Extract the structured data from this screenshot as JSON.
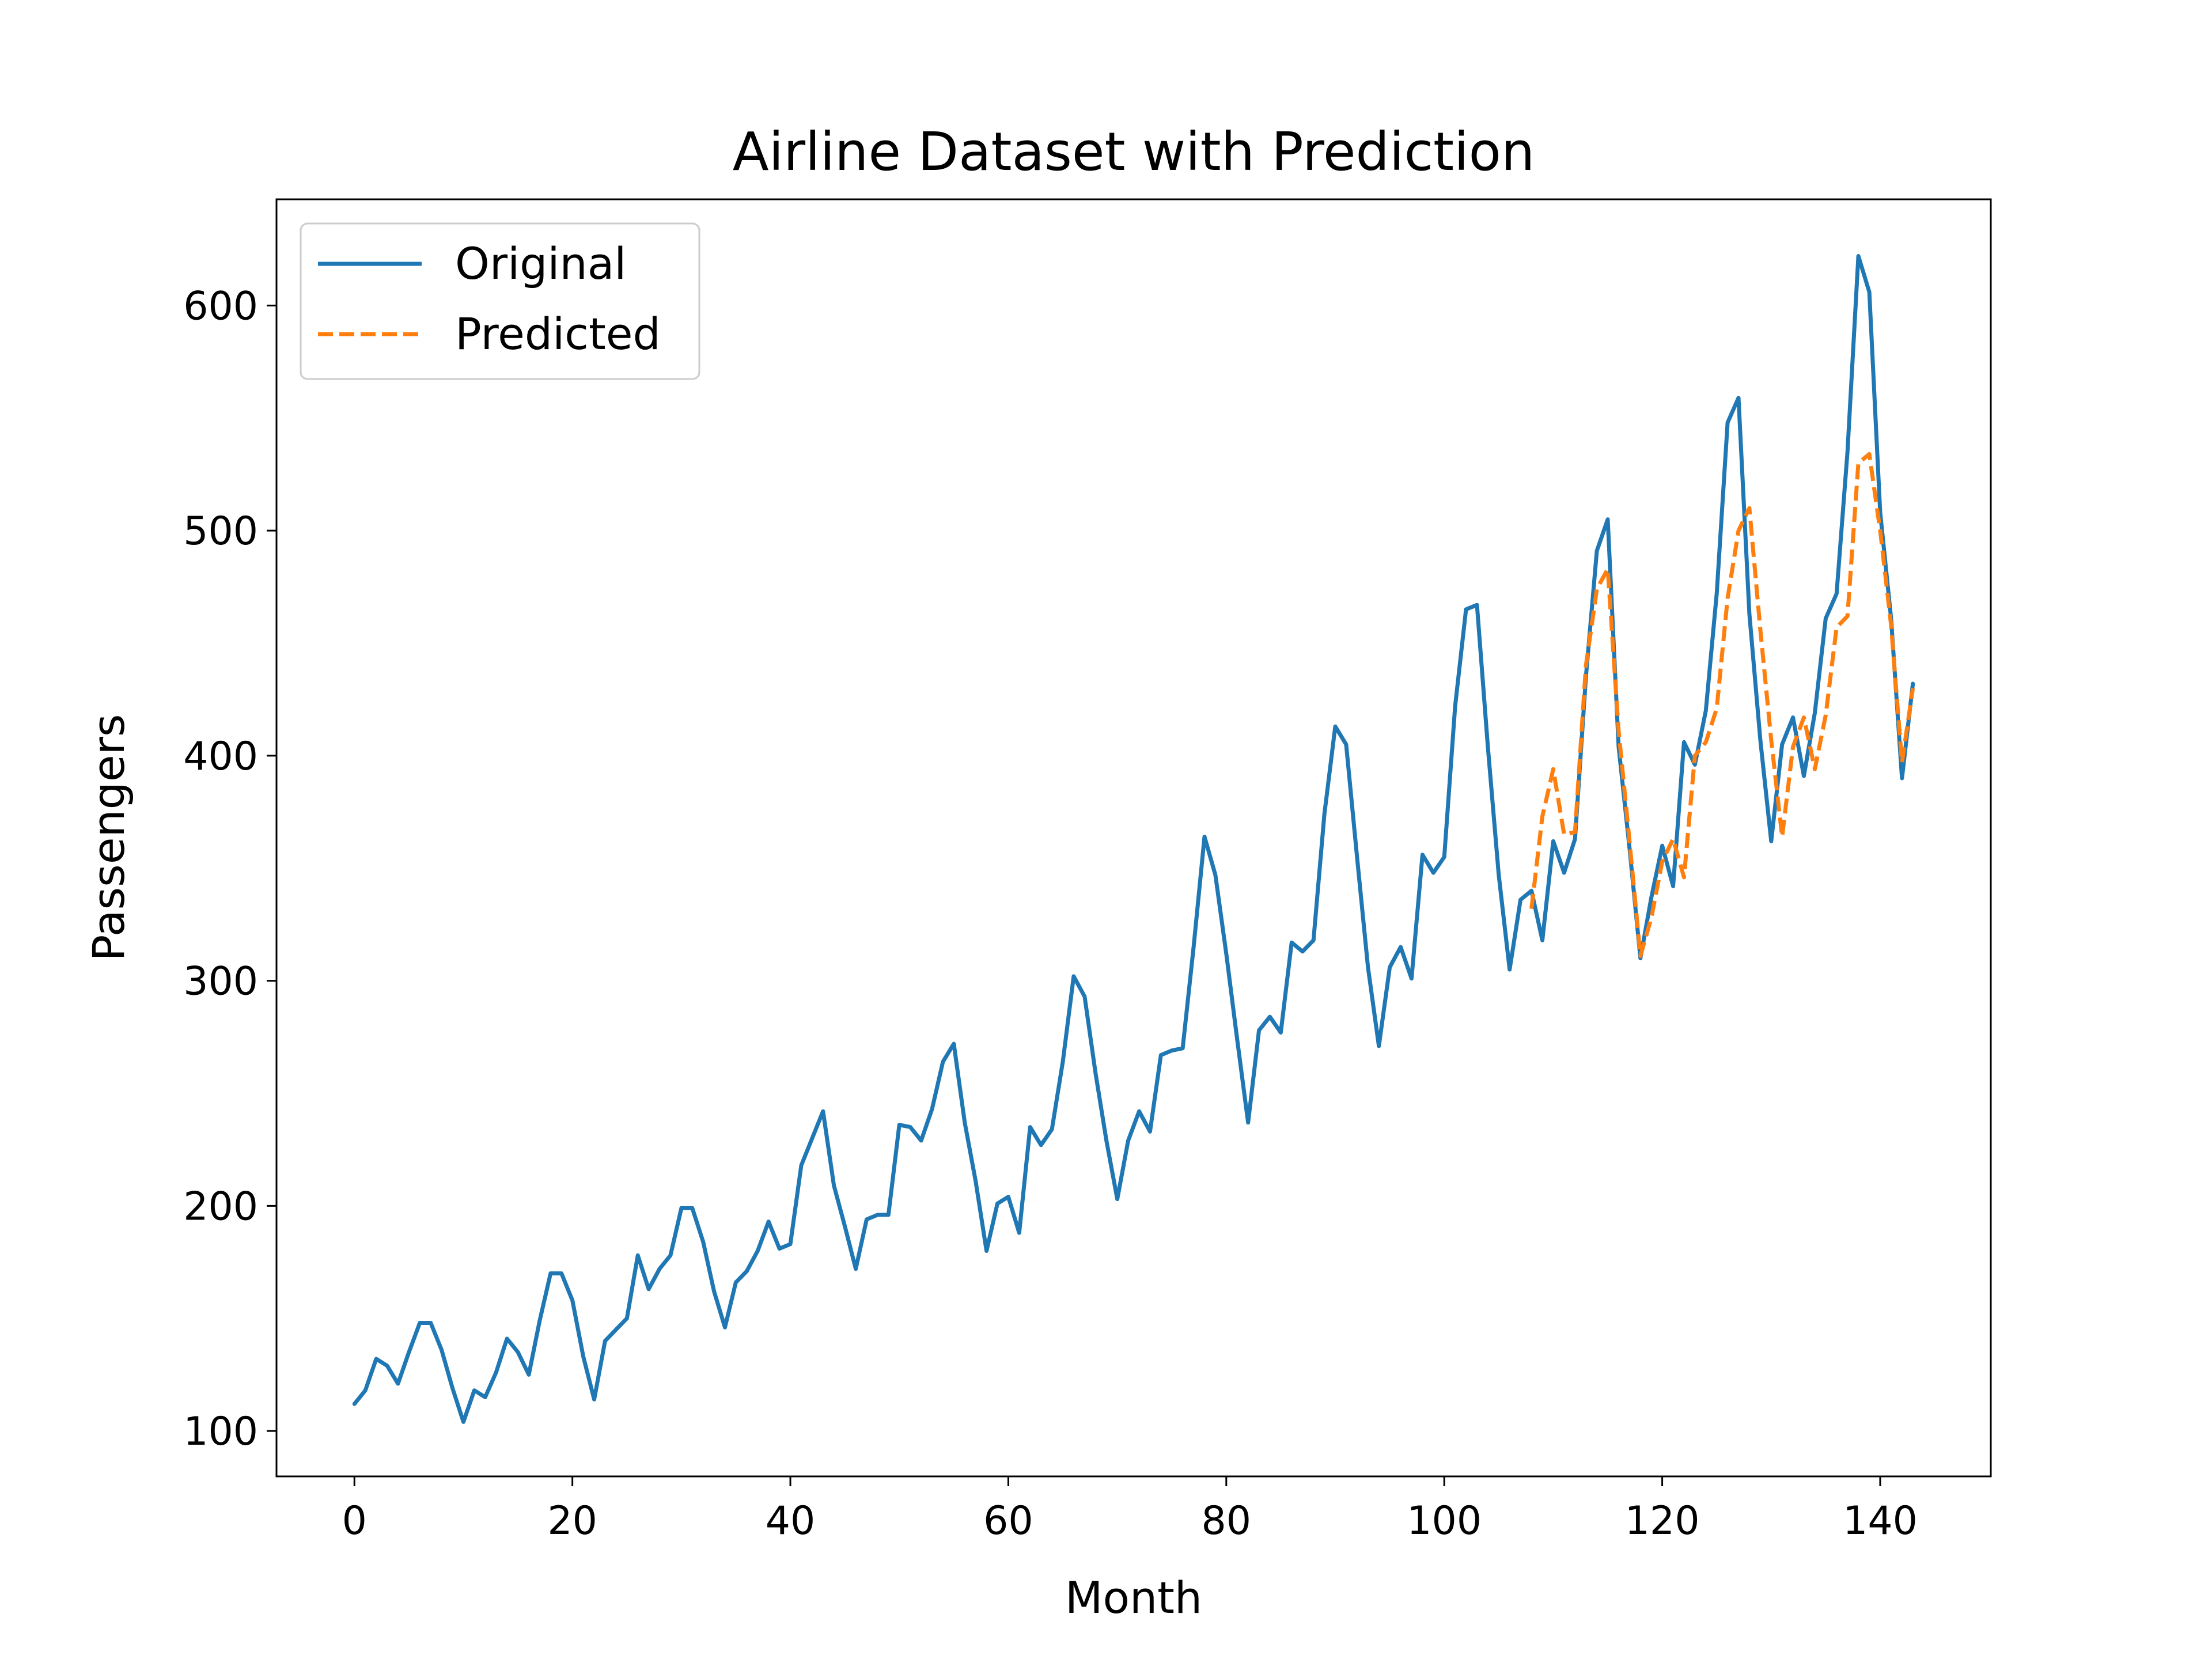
{
  "chart_data": {
    "type": "line",
    "title": "Airline Dataset with Prediction",
    "xlabel": "Month",
    "ylabel": "Passengers",
    "xlim": [
      -7.15,
      150.15
    ],
    "ylim": [
      79.8,
      647.2
    ],
    "xticks": [
      0,
      20,
      40,
      60,
      80,
      100,
      120,
      140
    ],
    "yticks": [
      100,
      200,
      300,
      400,
      500,
      600
    ],
    "grid": false,
    "legend_position": "top-left",
    "series": [
      {
        "name": "Original",
        "color": "#1f77b4",
        "style": "solid",
        "x_start": 0,
        "values": [
          112,
          118,
          132,
          129,
          121,
          135,
          148,
          148,
          136,
          119,
          104,
          118,
          115,
          126,
          141,
          135,
          125,
          149,
          170,
          170,
          158,
          133,
          114,
          140,
          145,
          150,
          178,
          163,
          172,
          178,
          199,
          199,
          184,
          162,
          146,
          166,
          171,
          180,
          193,
          181,
          183,
          218,
          230,
          242,
          209,
          191,
          172,
          194,
          196,
          196,
          236,
          235,
          229,
          243,
          264,
          272,
          237,
          211,
          180,
          201,
          204,
          188,
          235,
          227,
          234,
          264,
          302,
          293,
          259,
          229,
          203,
          229,
          242,
          233,
          267,
          269,
          270,
          315,
          364,
          347,
          312,
          274,
          237,
          278,
          284,
          277,
          317,
          313,
          318,
          374,
          413,
          405,
          355,
          306,
          271,
          306,
          315,
          301,
          356,
          348,
          355,
          422,
          465,
          467,
          404,
          347,
          305,
          336,
          340,
          318,
          362,
          348,
          363,
          435,
          491,
          505,
          404,
          359,
          310,
          337,
          360,
          342,
          406,
          396,
          420,
          472,
          548,
          559,
          463,
          407,
          362,
          405,
          417,
          391,
          419,
          461,
          472,
          535,
          622,
          606,
          508,
          461,
          390,
          432
        ]
      },
      {
        "name": "Predicted",
        "color": "#ff7f0e",
        "style": "dashed",
        "x_start": 108,
        "values": [
          332,
          373,
          394,
          365,
          366,
          440,
          474,
          483,
          411,
          362,
          311,
          328,
          353,
          363,
          346,
          400,
          406,
          421,
          470,
          500,
          510,
          456,
          407,
          364,
          404,
          417,
          394,
          418,
          457,
          462,
          530,
          534,
          500,
          458,
          397,
          430
        ]
      }
    ]
  }
}
